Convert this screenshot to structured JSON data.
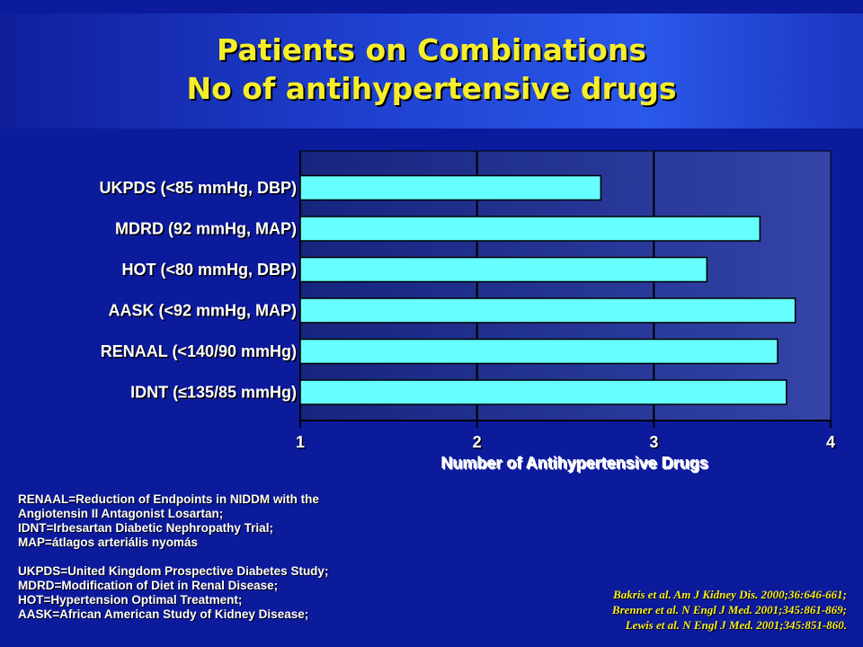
{
  "slide": {
    "title_line1": "Patients on Combinations",
    "title_line2": "No of antihypertensive drugs"
  },
  "chart_data": {
    "type": "bar",
    "orientation": "horizontal",
    "categories": [
      "UKPDS (<85 mmHg, DBP)",
      "MDRD (92 mmHg, MAP)",
      "HOT (<80 mmHg, DBP)",
      "AASK (<92 mmHg, MAP)",
      "RENAAL (<140/90 mmHg)",
      "IDNT (≤135/85 mmHg)"
    ],
    "values": [
      2.7,
      3.6,
      3.3,
      3.8,
      3.7,
      3.75
    ],
    "xlabel": "Number of Antihypertensive Drugs",
    "ylabel": "",
    "xlim": [
      1,
      4
    ],
    "xticks": [
      "1",
      "2",
      "3",
      "4"
    ],
    "grid": "vertical",
    "colors": {
      "bar": "#66ffff",
      "plot_background_light": "#1c2a8a",
      "plot_background_dark": "#2a3a9c",
      "gridline": "#000000"
    }
  },
  "abbreviations": [
    "RENAAL=Reduction of Endpoints in NIDDM with the",
    "Angiotensin II Antagonist Losartan;",
    "IDNT=Irbesartan Diabetic Nephropathy Trial;",
    "MAP=átlagos arteriális nyomás",
    "",
    "UKPDS=United Kingdom Prospective Diabetes Study;",
    "MDRD=Modification of Diet in Renal Disease;",
    "HOT=Hypertension Optimal Treatment;",
    "AASK=African American  Study of Kidney Disease;"
  ],
  "references": [
    "Bakris et al. Am J Kidney Dis. 2000;36:646-661;",
    "Brenner et al. N Engl J Med. 2001;345:861-869;",
    "Lewis et al. N Engl J Med. 2001;345:851-860."
  ]
}
